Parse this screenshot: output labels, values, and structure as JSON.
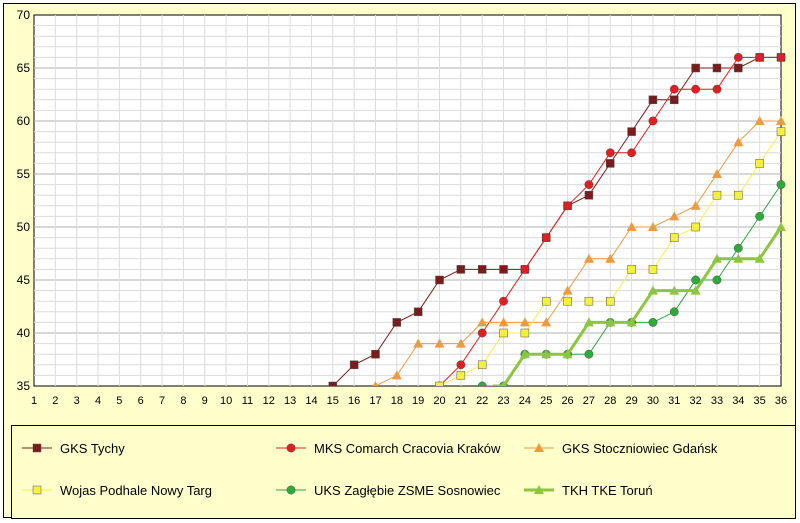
{
  "chart_data": {
    "type": "line",
    "title": "",
    "xlabel": "",
    "ylabel": "",
    "x": [
      1,
      2,
      3,
      4,
      5,
      6,
      7,
      8,
      9,
      10,
      11,
      12,
      13,
      14,
      15,
      16,
      17,
      18,
      19,
      20,
      21,
      22,
      23,
      24,
      25,
      26,
      27,
      28,
      29,
      30,
      31,
      32,
      33,
      34,
      35,
      36
    ],
    "ylim": [
      35,
      70
    ],
    "yticks": [
      35,
      40,
      45,
      50,
      55,
      60,
      65,
      70
    ],
    "grid": true,
    "legend_position": "bottom",
    "series": [
      {
        "name": "GKS Tychy",
        "color": "#7b1c1c",
        "marker": "square",
        "line_width": 1,
        "x": [
          15,
          16,
          17,
          18,
          19,
          20,
          21,
          22,
          23,
          24,
          25,
          26,
          27,
          28,
          29,
          30,
          31,
          32,
          33,
          34,
          35,
          36
        ],
        "values": [
          35,
          37,
          38,
          41,
          42,
          45,
          46,
          46,
          46,
          46,
          49,
          52,
          53,
          56,
          59,
          62,
          62,
          65,
          65,
          65,
          66,
          66
        ]
      },
      {
        "name": "MKS Comarch Cracovia Kraków",
        "color": "#e02020",
        "marker": "circle",
        "line_width": 1,
        "x": [
          20,
          21,
          22,
          23,
          24,
          25,
          26,
          27,
          28,
          29,
          30,
          31,
          32,
          33,
          34,
          35,
          36
        ],
        "values": [
          35,
          37,
          40,
          43,
          46,
          49,
          52,
          54,
          57,
          57,
          60,
          63,
          63,
          63,
          66,
          66,
          66
        ]
      },
      {
        "name": "GKS Stoczniowiec Gdańsk",
        "color": "#ee9a40",
        "marker": "triangle",
        "line_width": 1,
        "x": [
          17,
          18,
          19,
          20,
          21,
          22,
          23,
          24,
          25,
          26,
          27,
          28,
          29,
          30,
          31,
          32,
          33,
          34,
          35,
          36
        ],
        "values": [
          35,
          36,
          39,
          39,
          39,
          41,
          41,
          41,
          41,
          44,
          47,
          47,
          50,
          50,
          51,
          52,
          55,
          58,
          60,
          60
        ]
      },
      {
        "name": "Wojas Podhale Nowy Targ",
        "color": "#f5f040",
        "marker": "square",
        "line_width": 1,
        "x": [
          20,
          21,
          22,
          23,
          24,
          25,
          26,
          27,
          28,
          29,
          30,
          31,
          32,
          33,
          34,
          35,
          36
        ],
        "values": [
          35,
          36,
          37,
          40,
          40,
          43,
          43,
          43,
          43,
          46,
          46,
          49,
          50,
          53,
          53,
          56,
          59
        ]
      },
      {
        "name": "UKS Zagłębie ZSME Sosnowiec",
        "color": "#2eaa3a",
        "marker": "circle",
        "line_width": 1,
        "x": [
          22,
          23,
          24,
          25,
          26,
          27,
          28,
          29,
          30,
          31,
          32,
          33,
          34,
          35,
          36
        ],
        "values": [
          35,
          35,
          38,
          38,
          38,
          38,
          41,
          41,
          41,
          42,
          45,
          45,
          48,
          51,
          54
        ]
      },
      {
        "name": "TKH TKE Toruń",
        "color": "#8cc63f",
        "marker": "triangle",
        "line_width": 3,
        "x": [
          22.5,
          23,
          24,
          25,
          26,
          27,
          28,
          29,
          30,
          31,
          32,
          33,
          34,
          35,
          36
        ],
        "values": [
          35,
          35,
          38,
          38,
          38,
          41,
          41,
          41,
          44,
          44,
          44,
          47,
          47,
          47,
          50
        ]
      }
    ]
  }
}
